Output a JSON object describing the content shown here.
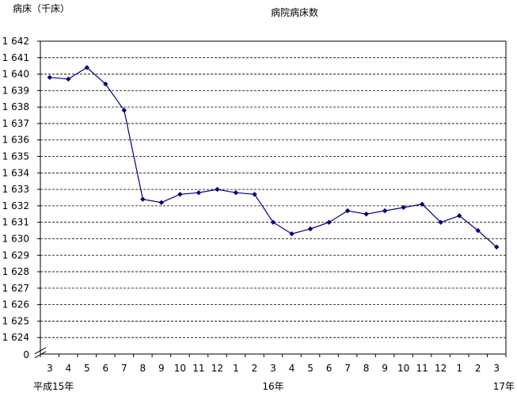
{
  "chart_data": {
    "type": "line",
    "title": "病院病床数",
    "ylabel": "病床（千床）",
    "ylim": [
      1623,
      1642
    ],
    "y_ticks": [
      "1 624",
      "1 625",
      "1 626",
      "1 627",
      "1 628",
      "1 629",
      "1 630",
      "1 631",
      "1 632",
      "1 633",
      "1 634",
      "1 635",
      "1 636",
      "1 637",
      "1 638",
      "1 639",
      "1 640",
      "1 641",
      "1 642"
    ],
    "y_zero_label": "0",
    "axis_break": true,
    "grid": "dashed-horizontal",
    "categories": [
      "3",
      "4",
      "5",
      "6",
      "7",
      "8",
      "9",
      "10",
      "11",
      "12",
      "1",
      "2",
      "3",
      "4",
      "5",
      "6",
      "7",
      "8",
      "9",
      "10",
      "11",
      "12",
      "1",
      "2",
      "3"
    ],
    "year_labels": [
      {
        "index": 0,
        "text": "平成15年"
      },
      {
        "index": 12,
        "text": "16年"
      },
      {
        "index": 24,
        "text": "17年"
      }
    ],
    "series": [
      {
        "color": "#000080",
        "values": [
          1639.8,
          1639.7,
          1640.4,
          1639.4,
          1637.8,
          1632.4,
          1632.2,
          1632.7,
          1632.8,
          1633.0,
          1632.8,
          1632.7,
          1631.0,
          1630.3,
          1630.6,
          1631.0,
          1631.7,
          1631.5,
          1631.7,
          1631.9,
          1632.1,
          1631.0,
          1631.4,
          1630.5,
          1629.5
        ]
      }
    ]
  }
}
